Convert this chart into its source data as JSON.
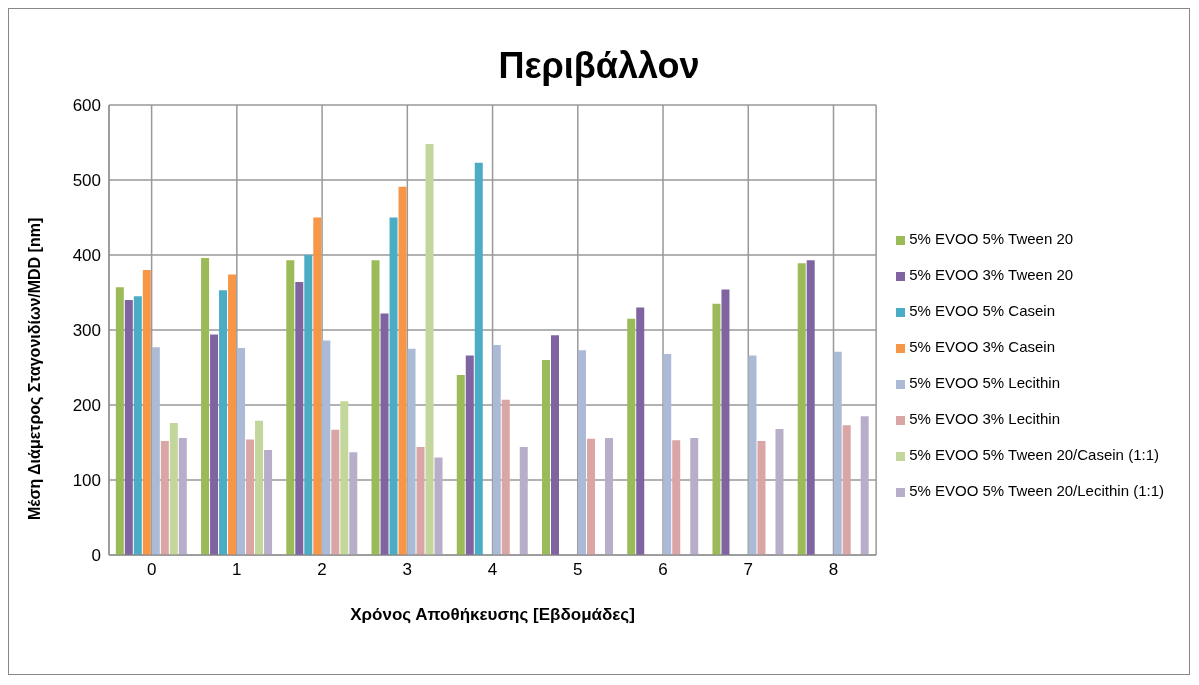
{
  "chart_data": {
    "type": "bar",
    "title": "Περιβάλλον",
    "xlabel": "Χρόνος Αποθήκευσης [Εβδομάδες]",
    "ylabel": "Μέση Διάμετρος Σταγονιδίων/MDD [nm]",
    "categories": [
      "0",
      "1",
      "2",
      "3",
      "4",
      "5",
      "6",
      "7",
      "8"
    ],
    "series": [
      {
        "name": "5% EVOO 5% Tween 20",
        "color": "#9bbb59",
        "values": [
          357,
          396,
          393,
          393,
          240,
          260,
          315,
          335,
          389
        ]
      },
      {
        "name": "5% EVOO 3% Tween 20",
        "color": "#8064a2",
        "values": [
          340,
          294,
          364,
          322,
          266,
          293,
          330,
          354,
          393
        ]
      },
      {
        "name": "5% EVOO 5% Casein",
        "color": "#4bacc6",
        "values": [
          345,
          353,
          400,
          450,
          523,
          null,
          null,
          null,
          null
        ]
      },
      {
        "name": "5% EVOO 3% Casein",
        "color": "#f79646",
        "values": [
          380,
          374,
          450,
          491,
          null,
          null,
          null,
          null,
          null
        ]
      },
      {
        "name": "5% EVOO 5% Lecithin",
        "color": "#aabad7",
        "values": [
          277,
          276,
          286,
          275,
          280,
          273,
          268,
          266,
          271
        ]
      },
      {
        "name": "5% EVOO 3% Lecithin",
        "color": "#d9a5a5",
        "values": [
          152,
          154,
          167,
          144,
          207,
          155,
          153,
          152,
          173
        ]
      },
      {
        "name": "5% EVOO 5% Tween 20/Casein (1:1)",
        "color": "#c3d69b",
        "values": [
          176,
          179,
          205,
          548,
          null,
          null,
          null,
          null,
          null
        ]
      },
      {
        "name": "5% EVOO 5% Tween 20/Lecithin (1:1)",
        "color": "#b9aec9",
        "values": [
          156,
          140,
          137,
          130,
          144,
          156,
          156,
          168,
          185
        ]
      }
    ],
    "ylim": [
      0,
      600
    ],
    "yticks": [
      0,
      100,
      200,
      300,
      400,
      500,
      600
    ],
    "grid": true,
    "legend": "right"
  }
}
